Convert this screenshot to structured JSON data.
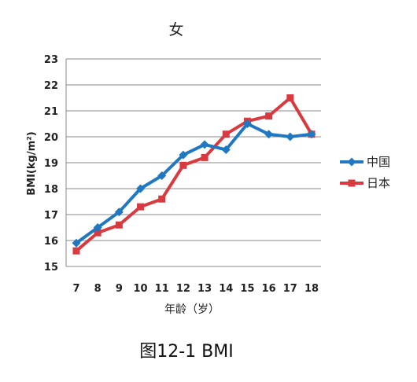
{
  "chart_data": {
    "type": "line",
    "title": "女",
    "xlabel": "年龄（岁）",
    "ylabel": "BMI(kg/m²)",
    "x": [
      7,
      8,
      9,
      10,
      11,
      12,
      13,
      14,
      15,
      16,
      17,
      18
    ],
    "ylim": [
      15,
      23
    ],
    "yticks": [
      15,
      16,
      17,
      18,
      19,
      20,
      21,
      22,
      23
    ],
    "grid": true,
    "legend_position": "right",
    "series": [
      {
        "name": "中国",
        "color": "#1f78c1",
        "marker": "diamond",
        "values": [
          15.9,
          16.5,
          17.1,
          18.0,
          18.5,
          19.3,
          19.7,
          19.5,
          20.5,
          20.1,
          20.0,
          20.1
        ]
      },
      {
        "name": "日本",
        "color": "#d93a3f",
        "marker": "square",
        "values": [
          15.6,
          16.3,
          16.6,
          17.3,
          17.6,
          18.9,
          19.2,
          20.1,
          20.6,
          20.8,
          21.5,
          20.1
        ]
      }
    ]
  },
  "caption": "图12-1  BMI"
}
